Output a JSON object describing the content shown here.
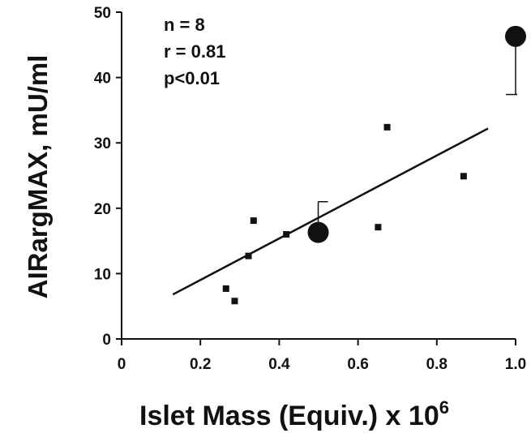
{
  "chart_data": {
    "type": "scatter",
    "title": "",
    "xlabel": "Islet Mass (Equiv.) x 10",
    "xlabel_superscript": "6",
    "ylabel": "AIRargMAX, mU/ml",
    "xlim": [
      0,
      1.0
    ],
    "ylim": [
      0,
      50
    ],
    "x_ticks": [
      "0",
      "0.2",
      "0.4",
      "0.6",
      "0.8",
      "1.0"
    ],
    "y_ticks": [
      "0",
      "10",
      "20",
      "30",
      "40",
      "50"
    ],
    "grid": false,
    "annotations": [
      "n = 8",
      "r = 0.81",
      "p<0.01"
    ],
    "series": [
      {
        "marker": "square",
        "points": [
          {
            "x": 0.265,
            "y": 7.7
          },
          {
            "x": 0.287,
            "y": 5.8
          },
          {
            "x": 0.322,
            "y": 12.7
          },
          {
            "x": 0.335,
            "y": 18.1
          },
          {
            "x": 0.418,
            "y": 16.0
          },
          {
            "x": 0.651,
            "y": 17.1
          },
          {
            "x": 0.674,
            "y": 32.4
          },
          {
            "x": 0.868,
            "y": 24.9
          }
        ]
      },
      {
        "marker": "circle",
        "points": [
          {
            "x": 0.499,
            "y": 16.3,
            "error_upper": 4.7
          },
          {
            "x": 1.0,
            "y": 46.3,
            "error_lower": 8.9
          }
        ]
      }
    ],
    "regression_line": {
      "x": [
        0.13,
        0.93
      ],
      "y": [
        6.8,
        32.2
      ]
    }
  }
}
